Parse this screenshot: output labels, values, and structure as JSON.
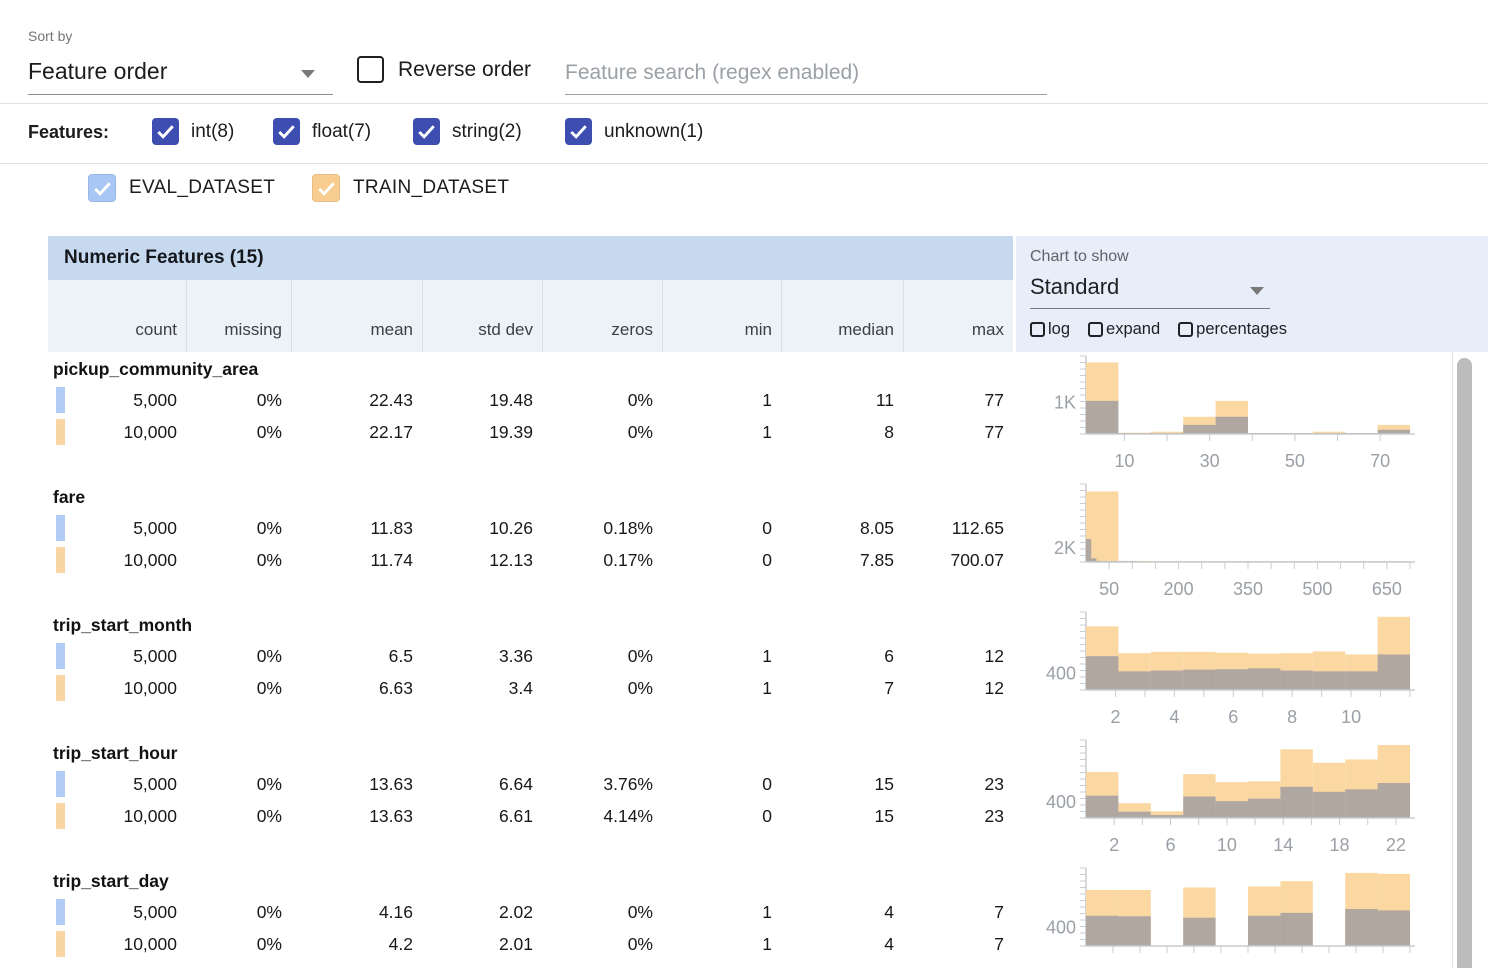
{
  "toolbar": {
    "sort_by_label": "Sort by",
    "sort_by_value": "Feature order",
    "reverse_order_label": "Reverse order",
    "search_placeholder": "Feature search (regex enabled)"
  },
  "filters": {
    "label": "Features:",
    "types": [
      {
        "label": "int(8)",
        "checked": true
      },
      {
        "label": "float(7)",
        "checked": true
      },
      {
        "label": "string(2)",
        "checked": true
      },
      {
        "label": "unknown(1)",
        "checked": true
      }
    ]
  },
  "datasets": [
    {
      "name": "EVAL_DATASET",
      "checked": true,
      "color": "#a9c7f4",
      "swatch": "#b3ccf5"
    },
    {
      "name": "TRAIN_DATASET",
      "checked": true,
      "color": "#f9cd90",
      "swatch": "#f8d6a2"
    }
  ],
  "table": {
    "title": "Numeric Features (15)",
    "columns": [
      "count",
      "missing",
      "mean",
      "std dev",
      "zeros",
      "min",
      "median",
      "max"
    ],
    "features": [
      {
        "name": "pickup_community_area",
        "rows": [
          {
            "dataset": "EVAL_DATASET",
            "values": [
              "5,000",
              "0%",
              "22.43",
              "19.48",
              "0%",
              "1",
              "11",
              "77"
            ]
          },
          {
            "dataset": "TRAIN_DATASET",
            "values": [
              "10,000",
              "0%",
              "22.17",
              "19.39",
              "0%",
              "1",
              "8",
              "77"
            ]
          }
        ]
      },
      {
        "name": "fare",
        "rows": [
          {
            "dataset": "EVAL_DATASET",
            "values": [
              "5,000",
              "0%",
              "11.83",
              "10.26",
              "0.18%",
              "0",
              "8.05",
              "112.65"
            ]
          },
          {
            "dataset": "TRAIN_DATASET",
            "values": [
              "10,000",
              "0%",
              "11.74",
              "12.13",
              "0.17%",
              "0",
              "7.85",
              "700.07"
            ]
          }
        ]
      },
      {
        "name": "trip_start_month",
        "rows": [
          {
            "dataset": "EVAL_DATASET",
            "values": [
              "5,000",
              "0%",
              "6.5",
              "3.36",
              "0%",
              "1",
              "6",
              "12"
            ]
          },
          {
            "dataset": "TRAIN_DATASET",
            "values": [
              "10,000",
              "0%",
              "6.63",
              "3.4",
              "0%",
              "1",
              "7",
              "12"
            ]
          }
        ]
      },
      {
        "name": "trip_start_hour",
        "rows": [
          {
            "dataset": "EVAL_DATASET",
            "values": [
              "5,000",
              "0%",
              "13.63",
              "6.64",
              "3.76%",
              "0",
              "15",
              "23"
            ]
          },
          {
            "dataset": "TRAIN_DATASET",
            "values": [
              "10,000",
              "0%",
              "13.63",
              "6.61",
              "4.14%",
              "0",
              "15",
              "23"
            ]
          }
        ]
      },
      {
        "name": "trip_start_day",
        "rows": [
          {
            "dataset": "EVAL_DATASET",
            "values": [
              "5,000",
              "0%",
              "4.16",
              "2.02",
              "0%",
              "1",
              "4",
              "7"
            ]
          },
          {
            "dataset": "TRAIN_DATASET",
            "values": [
              "10,000",
              "0%",
              "4.2",
              "2.01",
              "0%",
              "1",
              "4",
              "7"
            ]
          }
        ]
      }
    ]
  },
  "chart_controls": {
    "label": "Chart to show",
    "value": "Standard",
    "options": [
      {
        "label": "log",
        "checked": false
      },
      {
        "label": "expand",
        "checked": false
      },
      {
        "label": "percentages",
        "checked": false
      }
    ]
  },
  "chart_data": [
    {
      "feature": "pickup_community_area",
      "type": "bar",
      "y_label": "1K",
      "y_label_value": 1000,
      "y_max": 2400,
      "x_min": 1,
      "x_max": 77,
      "x_ticks": [
        10,
        20,
        30,
        40,
        50,
        60,
        70
      ],
      "x_tick_labels": [
        10,
        30,
        50,
        70
      ],
      "series": [
        {
          "name": "TRAIN_DATASET",
          "color": "#fbd7a2",
          "bin_start": 1,
          "bin_width": 7.6,
          "counts": [
            2200,
            40,
            70,
            530,
            1020,
            25,
            15,
            70,
            10,
            280
          ]
        },
        {
          "name": "EVAL_DATASET",
          "color": "rgba(104,120,160,0.5)",
          "bin_start": 1,
          "bin_width": 7.6,
          "counts": [
            1020,
            20,
            30,
            280,
            530,
            12,
            8,
            30,
            5,
            130
          ]
        }
      ]
    },
    {
      "feature": "fare",
      "type": "bar",
      "y_label": "2K",
      "y_label_value": 2000,
      "y_max": 10500,
      "x_min": 0,
      "x_max": 700,
      "x_ticks": [
        50,
        100,
        150,
        200,
        250,
        300,
        350,
        400,
        450,
        500,
        550,
        600,
        650,
        700
      ],
      "x_tick_labels": [
        50,
        200,
        350,
        500,
        650
      ],
      "series": [
        {
          "name": "TRAIN_DATASET",
          "color": "#fbd7a2",
          "bin_start": 0,
          "bin_width": 70,
          "counts": [
            9500,
            150,
            80,
            60,
            40,
            30,
            20,
            10,
            5,
            5
          ]
        },
        {
          "name": "EVAL_DATASET",
          "color": "rgba(104,120,160,0.5)",
          "bin_start": 0,
          "bin_width": 11.27,
          "counts": [
            3100,
            500,
            150,
            80,
            50,
            30,
            20,
            15,
            10,
            5
          ]
        }
      ]
    },
    {
      "feature": "trip_start_month",
      "type": "bar",
      "y_label": "400",
      "y_label_value": 400,
      "y_max": 1800,
      "x_min": 1,
      "x_max": 12,
      "x_ticks": [
        2,
        3,
        4,
        5,
        6,
        7,
        8,
        9,
        10,
        11,
        12
      ],
      "x_tick_labels": [
        2,
        4,
        6,
        8,
        10
      ],
      "series": [
        {
          "name": "TRAIN_DATASET",
          "color": "#fbd7a2",
          "bin_start": 1,
          "bin_width": 1.1,
          "counts": [
            1470,
            850,
            880,
            880,
            860,
            840,
            850,
            890,
            820,
            1690
          ]
        },
        {
          "name": "EVAL_DATASET",
          "color": "rgba(104,120,160,0.5)",
          "bin_start": 1,
          "bin_width": 1.1,
          "counts": [
            780,
            430,
            450,
            470,
            480,
            500,
            450,
            430,
            430,
            820
          ]
        }
      ]
    },
    {
      "feature": "trip_start_hour",
      "type": "bar",
      "y_label": "400",
      "y_label_value": 400,
      "y_max": 1850,
      "x_min": 0,
      "x_max": 23,
      "x_ticks": [
        2,
        4,
        6,
        8,
        10,
        12,
        14,
        16,
        18,
        20,
        22
      ],
      "x_tick_labels": [
        2,
        6,
        10,
        14,
        18,
        22
      ],
      "series": [
        {
          "name": "TRAIN_DATASET",
          "color": "#fbd7a2",
          "bin_start": 0,
          "bin_width": 2.3,
          "counts": [
            1090,
            350,
            160,
            1040,
            850,
            870,
            1630,
            1310,
            1390,
            1730
          ]
        },
        {
          "name": "EVAL_DATASET",
          "color": "rgba(104,120,160,0.5)",
          "bin_start": 0,
          "bin_width": 2.3,
          "counts": [
            530,
            150,
            70,
            510,
            400,
            460,
            740,
            620,
            680,
            830
          ]
        }
      ]
    },
    {
      "feature": "trip_start_day",
      "type": "bar",
      "y_label": "400",
      "y_label_value": 400,
      "y_max": 1600,
      "x_min": 1,
      "x_max": 7,
      "x_ticks": [
        1.5,
        2,
        2.5,
        3,
        3.5,
        4,
        4.5,
        5,
        5.5,
        6,
        6.5,
        7
      ],
      "x_tick_labels": [],
      "series": [
        {
          "name": "TRAIN_DATASET",
          "color": "#fbd7a2",
          "bin_start": 1,
          "bin_width": 0.6,
          "counts": [
            1150,
            1150,
            0,
            1200,
            0,
            1220,
            1330,
            0,
            1500,
            1480
          ]
        },
        {
          "name": "EVAL_DATASET",
          "color": "rgba(104,120,160,0.5)",
          "bin_start": 1,
          "bin_width": 0.6,
          "counts": [
            620,
            610,
            0,
            580,
            0,
            620,
            680,
            0,
            760,
            730
          ]
        }
      ]
    }
  ]
}
